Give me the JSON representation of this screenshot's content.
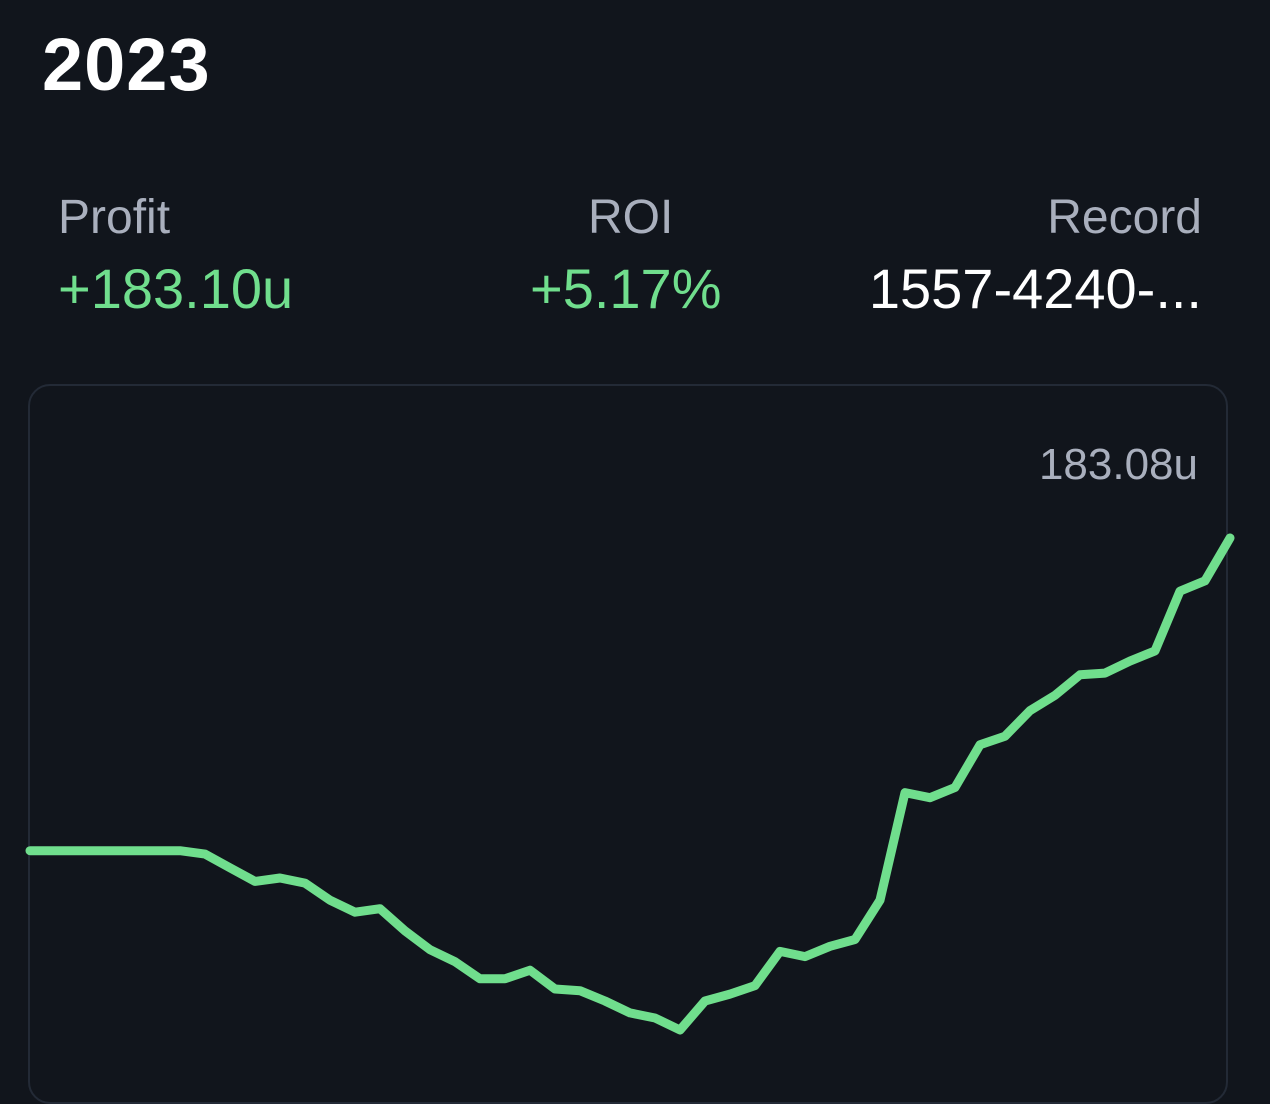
{
  "header": {
    "year": "2023"
  },
  "stats": {
    "profit": {
      "label": "Profit",
      "value": "+183.10u"
    },
    "roi": {
      "label": "ROI",
      "value": "+5.17%"
    },
    "record": {
      "label": "Record",
      "value": "1557-4240-..."
    }
  },
  "colors": {
    "background": "#11151c",
    "positive": "#70de8d",
    "muted": "#a9afbd"
  },
  "chart_data": {
    "type": "line",
    "max_label": "183.08u",
    "series": [
      {
        "values": [
          0,
          0,
          0,
          0,
          0,
          0,
          0,
          -2,
          -10,
          -18,
          -16,
          -19,
          -29,
          -36,
          -34,
          -47,
          -58,
          -65,
          -75,
          -75,
          -70,
          -81,
          -82,
          -88,
          -95,
          -98,
          -105,
          -88,
          -84,
          -79,
          -59,
          -62,
          -56,
          -52,
          -29,
          34,
          31,
          37,
          62,
          67,
          82,
          91,
          103,
          104,
          111,
          117,
          152,
          158,
          183.08
        ]
      }
    ]
  }
}
